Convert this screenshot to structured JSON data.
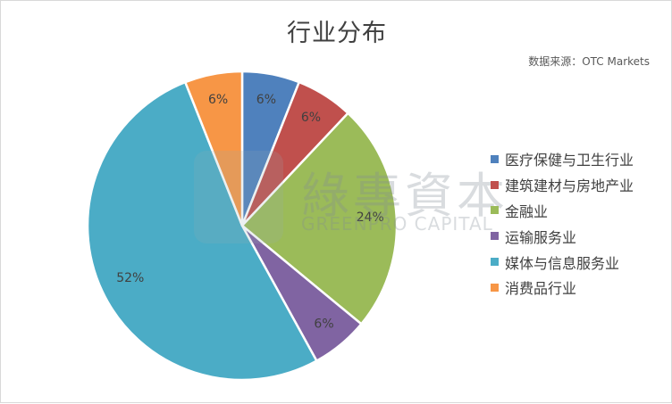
{
  "chart_data": {
    "type": "pie",
    "title": "行业分布",
    "source": "数据来源：OTC Markets",
    "categories": [
      "医疗保健与卫生行业",
      "建筑建材与房地产业",
      "金融业",
      "运输服务业",
      "媒体与信息服务业",
      "消费品行业"
    ],
    "values": [
      6,
      6,
      24,
      6,
      52,
      6
    ],
    "data_labels": [
      "6%",
      "6%",
      "24%",
      "6%",
      "52%",
      "6%"
    ],
    "colors": [
      "#4f81bd",
      "#c0504d",
      "#9bbb59",
      "#8064a2",
      "#4bacc6",
      "#f79646"
    ],
    "legend_position": "right",
    "start_angle_deg": 0,
    "direction": "clockwise"
  },
  "watermark": {
    "text": "綠專資本",
    "subtext": "GREENPRO CAPITAL"
  }
}
